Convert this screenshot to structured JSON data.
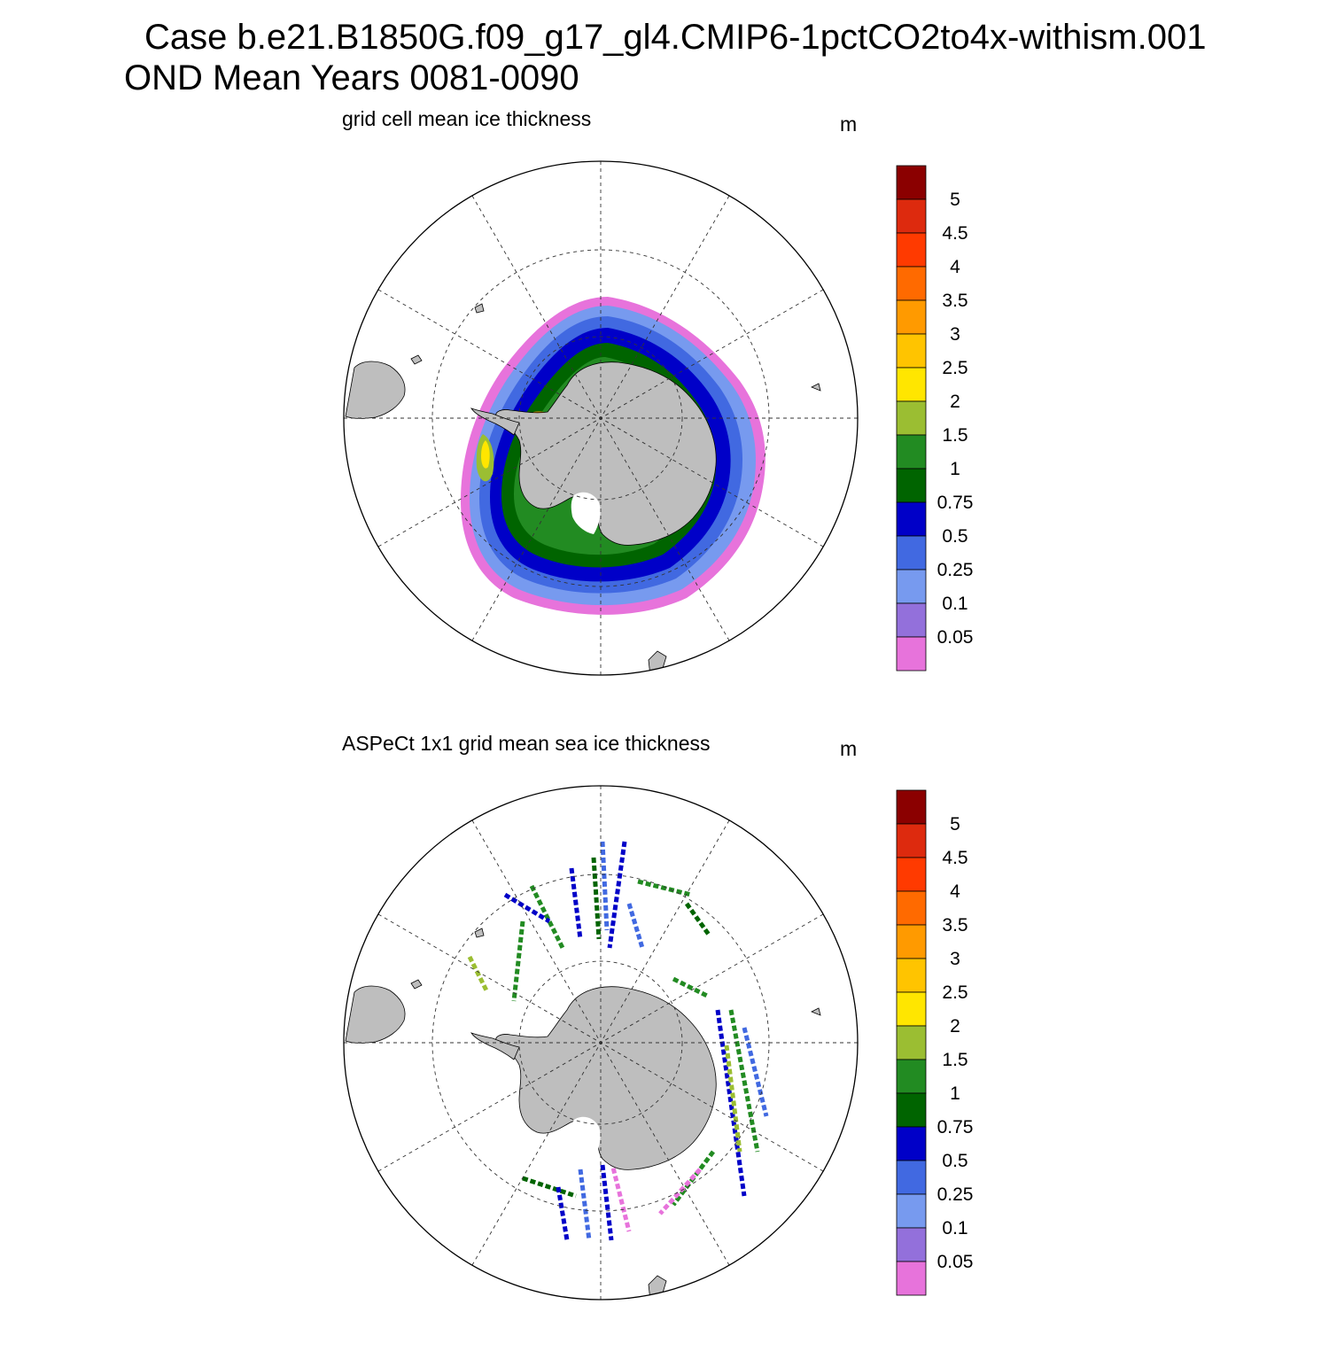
{
  "title": {
    "line1": "Case b.e21.B1850G.f09_g17_gl4.CMIP6-1pctCO2to4x-withism.001",
    "line2": "OND Mean   Years 0081-0090"
  },
  "panels": [
    {
      "id": "model",
      "title": "grid cell mean ice thickness",
      "units": "m"
    },
    {
      "id": "obs",
      "title": "ASPeCt 1x1 grid mean sea ice thickness",
      "units": "m"
    }
  ],
  "colorbar": {
    "labels": [
      "5",
      "4.5",
      "4",
      "3.5",
      "3",
      "2.5",
      "2",
      "1.5",
      "1",
      "0.75",
      "0.5",
      "0.25",
      "0.1",
      "0.05"
    ],
    "colors_top_to_bottom": [
      "#8b0000",
      "#dd2a0e",
      "#ff3a00",
      "#ff6a00",
      "#ff9a00",
      "#ffc400",
      "#ffe600",
      "#9bbe32",
      "#228b22",
      "#006400",
      "#0000c8",
      "#4169e1",
      "#779aef",
      "#9370db",
      "#e773db"
    ]
  },
  "map_colors": {
    "land": "#bebebe",
    "ocean": "#ffffff",
    "grid": "#000000"
  }
}
